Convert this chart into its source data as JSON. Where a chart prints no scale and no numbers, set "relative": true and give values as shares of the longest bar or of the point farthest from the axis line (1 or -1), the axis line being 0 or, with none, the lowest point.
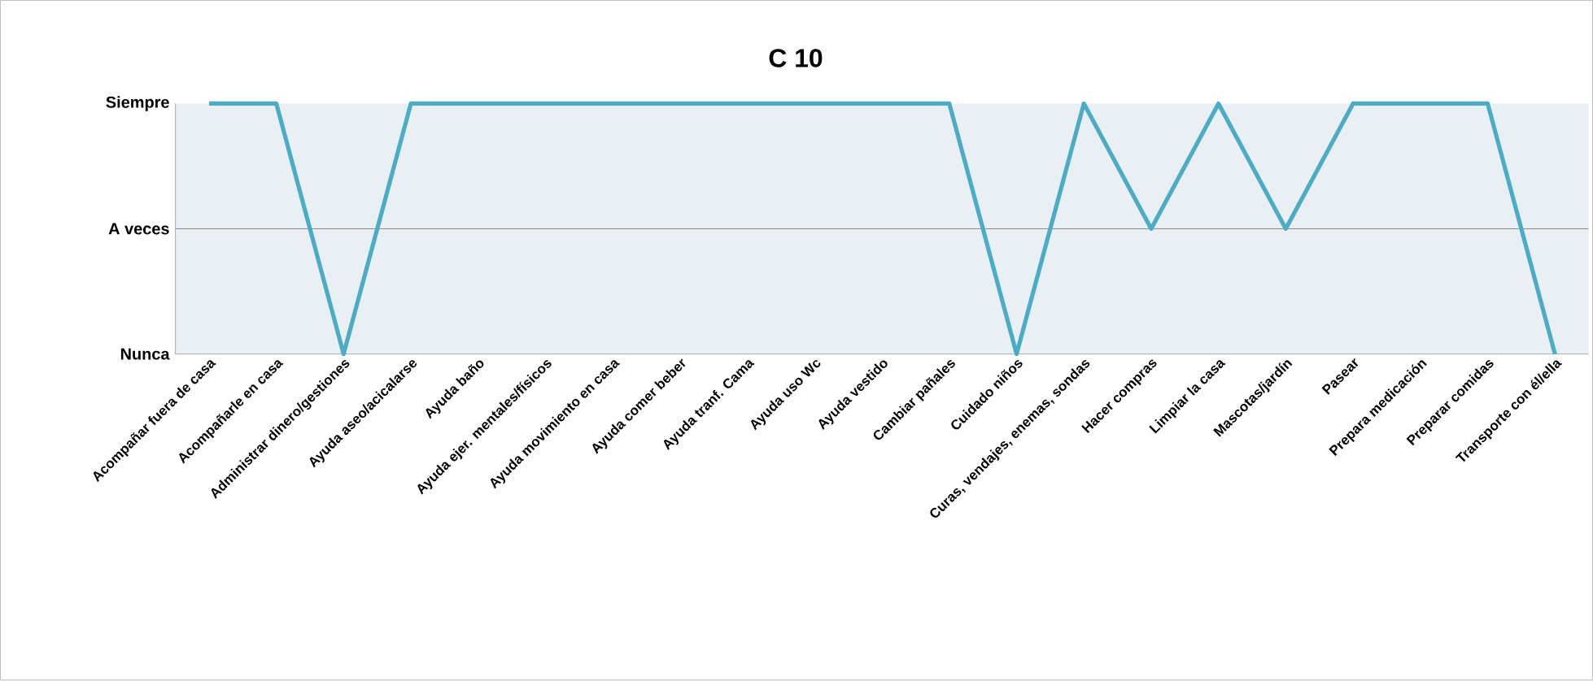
{
  "chart_data": {
    "type": "line",
    "title": "C 10",
    "categories": [
      "Acompañar fuera de casa",
      "Acompañarle en casa",
      "Administrar dinero/gestiones",
      "Ayuda aseo/acicalarse",
      "Ayuda baño",
      "Ayuda ejer. mentales/físicos",
      "Ayuda movimiento en casa",
      "Ayuda comer beber",
      "Ayuda tranf. Cama",
      "Ayuda uso Wc",
      "Ayuda vestido",
      "Cambiar pañales",
      "Cuidado niños",
      "Curas, vendajes, enemas, sondas",
      "Hacer compras",
      "Limpiar la casa",
      "Mascotas/jardín",
      "Pasear",
      "Prepara medicación",
      "Preparar comidas",
      "Transporte con él/ella"
    ],
    "values": [
      1,
      1,
      0,
      1,
      1,
      1,
      1,
      1,
      1,
      1,
      1,
      1,
      0,
      1,
      0.5,
      1,
      0.5,
      1,
      1,
      1,
      0
    ],
    "relative": true,
    "y_categories": [
      "Siempre",
      "A veces",
      "Nunca"
    ],
    "color": "#4bacc6",
    "ref_lines": [
      {
        "axis": "y",
        "value": 0.5,
        "color": "#8c8c8c"
      }
    ]
  }
}
